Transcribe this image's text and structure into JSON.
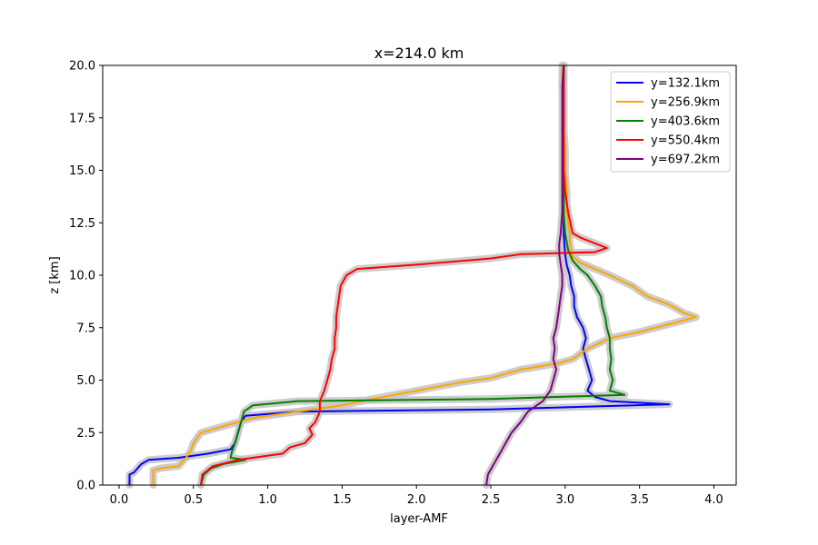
{
  "chart_data": {
    "type": "line",
    "title": "x=214.0 km",
    "xlabel": "layer-AMF",
    "ylabel": "z [km]",
    "xlim": [
      -0.11,
      4.15
    ],
    "ylim": [
      0,
      20
    ],
    "xticks": [
      0.0,
      0.5,
      1.0,
      1.5,
      2.0,
      2.5,
      3.0,
      3.5,
      4.0
    ],
    "xtick_labels": [
      "0.0",
      "0.5",
      "1.0",
      "1.5",
      "2.0",
      "2.5",
      "3.0",
      "3.5",
      "4.0"
    ],
    "yticks": [
      0.0,
      2.5,
      5.0,
      7.5,
      10.0,
      12.5,
      15.0,
      17.5,
      20.0
    ],
    "ytick_labels": [
      "0.0",
      "2.5",
      "5.0",
      "7.5",
      "10.0",
      "12.5",
      "15.0",
      "17.5",
      "20.0"
    ],
    "grid": false,
    "legend_position": "top-right",
    "uncertainty_band_color": "#c8c8c8",
    "series": [
      {
        "name": "y=132.1km",
        "color": "#0000ff",
        "points": [
          [
            0.07,
            0
          ],
          [
            0.07,
            0.5
          ],
          [
            0.1,
            0.6
          ],
          [
            0.15,
            1.0
          ],
          [
            0.2,
            1.2
          ],
          [
            0.4,
            1.3
          ],
          [
            0.6,
            1.5
          ],
          [
            0.75,
            1.7
          ],
          [
            0.78,
            2.0
          ],
          [
            0.8,
            2.5
          ],
          [
            0.82,
            3.0
          ],
          [
            0.85,
            3.3
          ],
          [
            1.2,
            3.5
          ],
          [
            2.5,
            3.6
          ],
          [
            3.7,
            3.85
          ],
          [
            3.3,
            4.0
          ],
          [
            3.2,
            4.2
          ],
          [
            3.15,
            4.5
          ],
          [
            3.18,
            5.0
          ],
          [
            3.16,
            5.5
          ],
          [
            3.14,
            6.0
          ],
          [
            3.12,
            6.5
          ],
          [
            3.14,
            7.0
          ],
          [
            3.12,
            7.5
          ],
          [
            3.08,
            8.0
          ],
          [
            3.06,
            8.5
          ],
          [
            3.06,
            9.0
          ],
          [
            3.04,
            9.5
          ],
          [
            3.03,
            10.0
          ],
          [
            3.01,
            10.5
          ],
          [
            3.0,
            11.0
          ],
          [
            2.99,
            12.0
          ],
          [
            2.99,
            13.0
          ],
          [
            2.99,
            14.0
          ],
          [
            2.99,
            15.0
          ],
          [
            2.99,
            16.0
          ],
          [
            2.99,
            17.0
          ],
          [
            2.99,
            18.0
          ],
          [
            2.99,
            19.0
          ],
          [
            2.99,
            20.0
          ]
        ]
      },
      {
        "name": "y=256.9km",
        "color": "#ffa500",
        "points": [
          [
            0.23,
            0
          ],
          [
            0.23,
            0.7
          ],
          [
            0.28,
            0.8
          ],
          [
            0.4,
            0.9
          ],
          [
            0.45,
            1.3
          ],
          [
            0.48,
            1.6
          ],
          [
            0.5,
            2.0
          ],
          [
            0.55,
            2.5
          ],
          [
            0.7,
            2.8
          ],
          [
            0.9,
            3.2
          ],
          [
            1.2,
            3.5
          ],
          [
            1.5,
            3.8
          ],
          [
            1.7,
            4.1
          ],
          [
            2.0,
            4.5
          ],
          [
            2.3,
            4.9
          ],
          [
            2.5,
            5.1
          ],
          [
            2.7,
            5.5
          ],
          [
            2.95,
            5.8
          ],
          [
            3.05,
            6.0
          ],
          [
            3.15,
            6.5
          ],
          [
            3.3,
            7.0
          ],
          [
            3.5,
            7.3
          ],
          [
            3.88,
            8.0
          ],
          [
            3.8,
            8.2
          ],
          [
            3.7,
            8.6
          ],
          [
            3.55,
            9.0
          ],
          [
            3.45,
            9.5
          ],
          [
            3.3,
            10.0
          ],
          [
            3.2,
            10.3
          ],
          [
            3.1,
            10.6
          ],
          [
            3.05,
            10.9
          ],
          [
            3.03,
            11.5
          ],
          [
            3.03,
            12.0
          ],
          [
            3.01,
            13.0
          ],
          [
            3.01,
            14.0
          ],
          [
            3.0,
            15.0
          ],
          [
            3.0,
            16.0
          ],
          [
            2.99,
            17.0
          ],
          [
            2.99,
            18.0
          ],
          [
            2.98,
            19.0
          ],
          [
            2.98,
            20.0
          ]
        ]
      },
      {
        "name": "y=403.6km",
        "color": "#008000",
        "points": [
          [
            0.55,
            0
          ],
          [
            0.57,
            0.5
          ],
          [
            0.62,
            0.8
          ],
          [
            0.7,
            1.0
          ],
          [
            0.85,
            1.2
          ],
          [
            0.75,
            1.3
          ],
          [
            0.76,
            1.6
          ],
          [
            0.78,
            2.0
          ],
          [
            0.8,
            2.5
          ],
          [
            0.82,
            3.0
          ],
          [
            0.84,
            3.5
          ],
          [
            0.9,
            3.8
          ],
          [
            1.2,
            4.0
          ],
          [
            2.5,
            4.1
          ],
          [
            3.4,
            4.3
          ],
          [
            3.3,
            4.5
          ],
          [
            3.32,
            5.0
          ],
          [
            3.3,
            5.5
          ],
          [
            3.31,
            6.0
          ],
          [
            3.3,
            6.5
          ],
          [
            3.3,
            7.0
          ],
          [
            3.28,
            7.5
          ],
          [
            3.27,
            8.0
          ],
          [
            3.25,
            8.5
          ],
          [
            3.24,
            9.0
          ],
          [
            3.2,
            9.5
          ],
          [
            3.15,
            10.0
          ],
          [
            3.1,
            10.3
          ],
          [
            3.05,
            10.7
          ],
          [
            3.02,
            11.2
          ],
          [
            3.0,
            12.0
          ],
          [
            2.99,
            13.0
          ],
          [
            2.99,
            14.0
          ],
          [
            2.99,
            15.0
          ],
          [
            2.99,
            16.0
          ],
          [
            2.99,
            17.0
          ],
          [
            2.99,
            18.0
          ],
          [
            2.99,
            19.0
          ],
          [
            2.99,
            20.0
          ]
        ]
      },
      {
        "name": "y=550.4km",
        "color": "#ff0000",
        "points": [
          [
            0.55,
            0
          ],
          [
            0.56,
            0.5
          ],
          [
            0.63,
            0.9
          ],
          [
            0.8,
            1.2
          ],
          [
            1.1,
            1.5
          ],
          [
            1.15,
            1.8
          ],
          [
            1.25,
            2.0
          ],
          [
            1.3,
            2.4
          ],
          [
            1.28,
            2.7
          ],
          [
            1.32,
            3.0
          ],
          [
            1.35,
            3.5
          ],
          [
            1.35,
            4.0
          ],
          [
            1.38,
            4.5
          ],
          [
            1.4,
            5.0
          ],
          [
            1.42,
            5.5
          ],
          [
            1.43,
            6.0
          ],
          [
            1.45,
            6.5
          ],
          [
            1.45,
            7.0
          ],
          [
            1.46,
            7.5
          ],
          [
            1.46,
            8.0
          ],
          [
            1.47,
            8.5
          ],
          [
            1.48,
            9.0
          ],
          [
            1.49,
            9.5
          ],
          [
            1.53,
            10.0
          ],
          [
            1.6,
            10.3
          ],
          [
            2.0,
            10.5
          ],
          [
            2.5,
            10.8
          ],
          [
            2.7,
            11.0
          ],
          [
            3.2,
            11.1
          ],
          [
            3.28,
            11.3
          ],
          [
            3.1,
            11.8
          ],
          [
            3.05,
            12.0
          ],
          [
            3.02,
            13.0
          ],
          [
            3.0,
            14.0
          ],
          [
            2.99,
            15.0
          ],
          [
            2.99,
            16.0
          ],
          [
            2.99,
            17.0
          ],
          [
            2.99,
            18.0
          ],
          [
            2.99,
            19.0
          ],
          [
            2.99,
            20.0
          ]
        ]
      },
      {
        "name": "y=697.2km",
        "color": "#800080",
        "points": [
          [
            2.47,
            0
          ],
          [
            2.48,
            0.5
          ],
          [
            2.52,
            1.0
          ],
          [
            2.56,
            1.5
          ],
          [
            2.6,
            2.0
          ],
          [
            2.64,
            2.5
          ],
          [
            2.7,
            3.0
          ],
          [
            2.75,
            3.5
          ],
          [
            2.85,
            4.0
          ],
          [
            2.9,
            4.5
          ],
          [
            2.92,
            5.0
          ],
          [
            2.94,
            5.5
          ],
          [
            2.92,
            6.0
          ],
          [
            2.93,
            6.5
          ],
          [
            2.92,
            7.0
          ],
          [
            2.94,
            7.5
          ],
          [
            2.95,
            8.0
          ],
          [
            2.96,
            8.5
          ],
          [
            2.97,
            9.0
          ],
          [
            2.98,
            9.5
          ],
          [
            2.98,
            10.0
          ],
          [
            2.97,
            10.5
          ],
          [
            2.96,
            11.0
          ],
          [
            2.96,
            11.5
          ],
          [
            2.97,
            12.0
          ],
          [
            2.98,
            13.0
          ],
          [
            2.98,
            14.0
          ],
          [
            2.98,
            15.0
          ],
          [
            2.98,
            16.0
          ],
          [
            2.98,
            17.0
          ],
          [
            2.98,
            18.0
          ],
          [
            2.98,
            19.0
          ],
          [
            2.99,
            20.0
          ]
        ]
      }
    ]
  }
}
